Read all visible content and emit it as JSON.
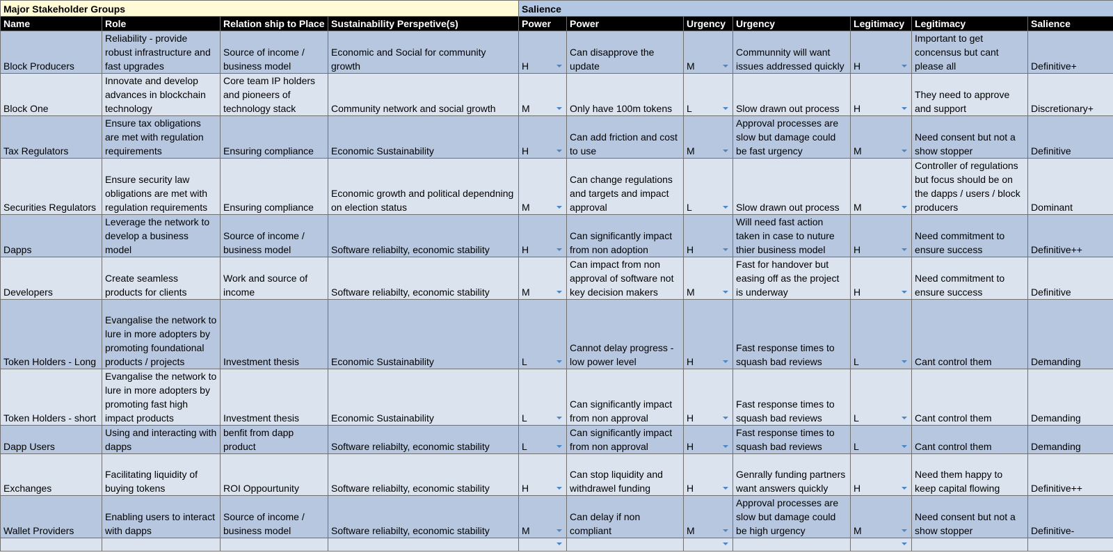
{
  "group_headers": {
    "major": "Major Stakeholder Groups",
    "salience": "Salience"
  },
  "columns": [
    "Name",
    "Role",
    "Relation ship to Place",
    "Sustainability Perspetive(s)",
    "Power",
    "Power",
    "Urgency",
    "Urgency",
    "Legitimacy",
    "Legitimacy",
    "Salience"
  ],
  "rows": [
    {
      "name": "Block Producers",
      "role": "Reliability - provide robust infrastructure and fast upgrades",
      "relation": "Source of income / business model",
      "sustainability": "Economic and Social for community growth",
      "power": "H",
      "power_note": "Can disapprove the update",
      "urgency": "M",
      "urgency_note": "Communnity will want issues addressed quickly",
      "legitimacy": "H",
      "legitimacy_note": "Important to get concensus but cant please all",
      "salience": "Definitive+"
    },
    {
      "name": "Block One",
      "role": "Innovate and develop advances in blockchain technology",
      "relation": "Core team IP holders and pioneers of technology stack",
      "sustainability": "Community network and social growth",
      "power": "M",
      "power_note": "Only have 100m tokens",
      "urgency": "L",
      "urgency_note": "Slow drawn out process",
      "legitimacy": "H",
      "legitimacy_note": "They need to approve and support",
      "salience": "Discretionary+"
    },
    {
      "name": "Tax Regulators",
      "role": "Ensure tax obligations are met with regulation requirements",
      "relation": "Ensuring compliance",
      "sustainability": "Economic Sustainability",
      "power": "H",
      "power_note": "Can add friction and cost to use",
      "urgency": "M",
      "urgency_note": "Approval processes are slow but damage could be fast urgency",
      "legitimacy": "M",
      "legitimacy_note": "Need consent but not a show stopper",
      "salience": "Definitive"
    },
    {
      "name": "Securities Regulators",
      "role": "Ensure security law obligations are met with regulation requirements",
      "relation": "Ensuring compliance",
      "sustainability": "Economic growth and political dependning on election status",
      "power": "M",
      "power_note": "Can change regulations and targets and impact approval",
      "urgency": "L",
      "urgency_note": "Slow drawn out process",
      "legitimacy": "M",
      "legitimacy_note": "Controller of regulations but focus should be on the dapps / users / block producers",
      "salience": "Dominant"
    },
    {
      "name": "Dapps",
      "role": "Leverage the network to develop a business model",
      "relation": "Source of income / business model",
      "sustainability": "Software reliabilty, economic stability",
      "power": "H",
      "power_note": "Can significantly impact from non adoption",
      "urgency": "H",
      "urgency_note": "Will need fast action taken in case to nuture thier business model",
      "legitimacy": "H",
      "legitimacy_note": "Need commitment to ensure success",
      "salience": "Definitive++"
    },
    {
      "name": "Developers",
      "role": "Create seamless products for clients",
      "relation": "Work and source of income",
      "sustainability": "Software reliabilty, economic stability",
      "power": "M",
      "power_note": "Can impact from non approval of software not key decision makers",
      "urgency": "M",
      "urgency_note": "Fast for handover but easing off as the project is underway",
      "legitimacy": "H",
      "legitimacy_note": "Need commitment to ensure success",
      "salience": "Definitive"
    },
    {
      "name": "Token Holders - Long",
      "role": "Evangalise the network to lure in more adopters by promoting foundational products / projects",
      "relation": "Investment thesis",
      "sustainability": "Economic Sustainability",
      "power": "L",
      "power_note": "Cannot delay progress - low power level",
      "urgency": "H",
      "urgency_note": "Fast response times to squash bad reviews",
      "legitimacy": "L",
      "legitimacy_note": "Cant control them",
      "salience": "Demanding"
    },
    {
      "name": "Token Holders - short",
      "role": "Evangalise the network to lure in more adopters by promoting fast high impact products",
      "relation": "Investment thesis",
      "sustainability": "Economic Sustainability",
      "power": "L",
      "power_note": "Can significantly impact from non approval",
      "urgency": "H",
      "urgency_note": "Fast response times to squash bad reviews",
      "legitimacy": "L",
      "legitimacy_note": "Cant control them",
      "salience": "Demanding"
    },
    {
      "name": "Dapp Users",
      "role": "Using and interacting with dapps",
      "relation": "benfit from dapp product",
      "sustainability": "Software reliabilty, economic stability",
      "power": "L",
      "power_note": "Can significantly impact from non approval",
      "urgency": "H",
      "urgency_note": "Fast response times to squash bad reviews",
      "legitimacy": "L",
      "legitimacy_note": "Cant control them",
      "salience": "Demanding"
    },
    {
      "name": "Exchanges",
      "role": "Facilitating liquidity of buying tokens",
      "relation": "ROI Oppourtunity",
      "sustainability": "Software reliabilty, economic stability",
      "power": "H",
      "power_note": "Can stop liquidity and withdrawel funding",
      "urgency": "H",
      "urgency_note": "Genrally funding partners want answers quickly",
      "legitimacy": "H",
      "legitimacy_note": "Need them happy to keep capital flowing",
      "salience": "Definitive++"
    },
    {
      "name": "Wallet Providers",
      "role": "Enabling users to interact with dapps",
      "relation": "Source of income / business model",
      "sustainability": "Software reliabilty, economic stability",
      "power": "M",
      "power_note": "Can delay if non compliant",
      "urgency": "M",
      "urgency_note": "Approval processes are slow but damage could be high urgency",
      "legitimacy": "M",
      "legitimacy_note": "Need consent but not a show stopper",
      "salience": "Definitive-"
    }
  ],
  "colors": {
    "header_bg": "#000000",
    "major_group_bg": "#fffbd6",
    "salience_group_bg": "#b3c6e2",
    "row_dark": "#b7c7df",
    "row_light": "#dbe3ef",
    "dropdown_caret": "#4a86c8"
  },
  "icons": {
    "dropdown": "dropdown-caret-icon"
  }
}
